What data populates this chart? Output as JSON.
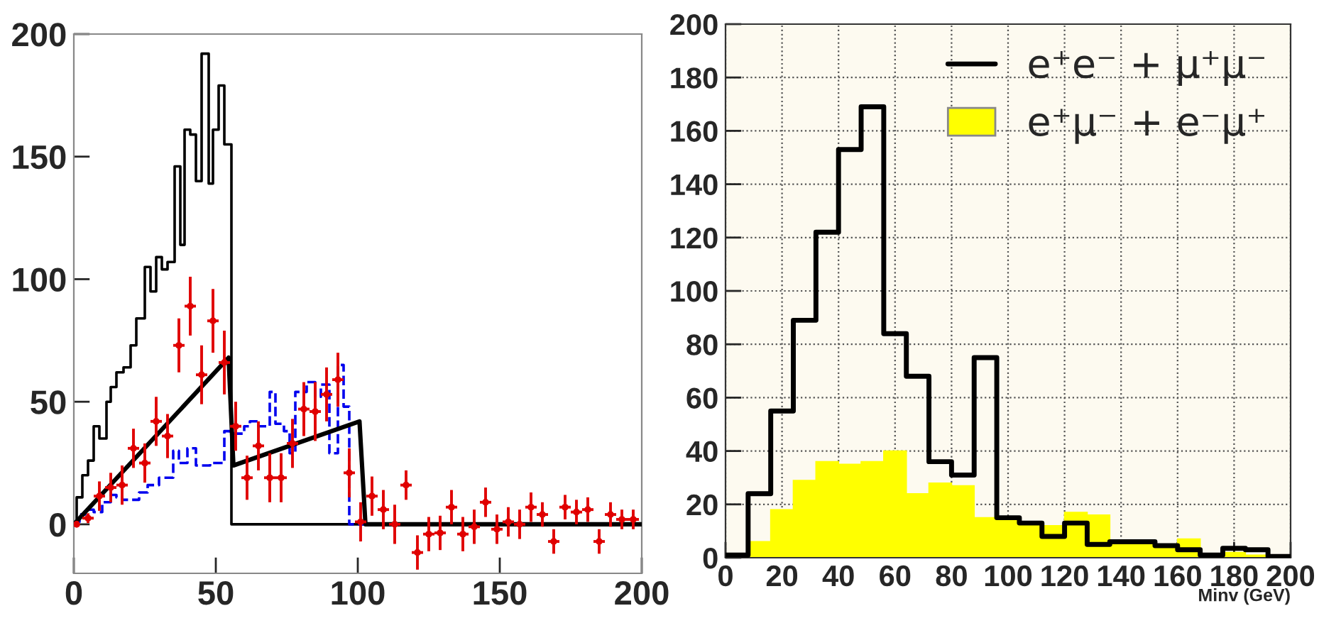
{
  "chart_data": [
    {
      "type": "step",
      "xlim": [
        0,
        200
      ],
      "ylim": [
        -20,
        200
      ],
      "xticks": [
        0,
        50,
        100,
        150,
        200
      ],
      "yticks": [
        0,
        50,
        100,
        150,
        200
      ],
      "grid": false,
      "legend": false,
      "series": [
        {
          "color": "#000000",
          "line_style": "solid",
          "x": [
            0,
            1,
            3,
            5,
            7,
            9,
            11.5,
            13,
            15,
            17.5,
            20,
            22,
            25,
            27,
            29,
            31,
            33,
            35.5,
            37.5,
            39,
            41,
            43,
            45,
            47.5,
            49,
            51,
            53,
            55.5,
            200
          ],
          "values": [
            0,
            11,
            20,
            26,
            40,
            35,
            50,
            56,
            62,
            64,
            73,
            84,
            105,
            95,
            109,
            104,
            107,
            146,
            114,
            161,
            159,
            140,
            192,
            139,
            161,
            179,
            155,
            0,
            0
          ]
        },
        {
          "color": "#0000ee",
          "line_style": "dashed",
          "x": [
            0,
            2,
            4,
            7,
            10,
            13,
            15,
            17,
            20,
            23,
            26,
            30,
            35,
            37,
            40,
            43,
            48,
            53,
            55,
            57,
            60,
            62,
            65,
            69,
            71,
            74,
            76,
            78,
            82,
            85,
            87,
            90,
            93,
            95,
            97,
            200
          ],
          "values": [
            1,
            4,
            6,
            5,
            9,
            12,
            11,
            10,
            10,
            13,
            16,
            19,
            30,
            25,
            31,
            24,
            25,
            38,
            37,
            37,
            40,
            42,
            40,
            54,
            41,
            38,
            29,
            54,
            58,
            52,
            57,
            29,
            65,
            48,
            0,
            0
          ]
        },
        {
          "type": "scatter",
          "color": "#e00000",
          "x": [
            1,
            5,
            9,
            13,
            17,
            21,
            25,
            29,
            33,
            37,
            41,
            45,
            49,
            53,
            57,
            61,
            65,
            69,
            73,
            77,
            81,
            85,
            89,
            93,
            97,
            101,
            105,
            109,
            113,
            117,
            121,
            125,
            129,
            133,
            137,
            141,
            145,
            149,
            153,
            157,
            161,
            165,
            169,
            173,
            177,
            181,
            185,
            189,
            193,
            197
          ],
          "values": [
            0,
            2.5,
            11.5,
            15,
            16,
            31,
            25,
            42,
            36,
            73,
            89,
            61,
            83,
            66,
            40,
            19,
            32,
            19,
            19,
            33,
            47,
            46,
            53,
            59,
            21,
            1,
            11.5,
            6,
            0,
            16,
            -11.5,
            -4,
            -3.5,
            7,
            -4,
            -1,
            9,
            -2,
            1,
            0,
            7,
            4,
            -7,
            7,
            5,
            6,
            -7,
            4,
            2,
            2
          ],
          "errors": [
            1,
            2,
            6,
            6,
            8,
            8,
            8,
            10,
            9,
            11,
            12,
            12,
            13,
            13,
            10,
            9,
            10,
            10,
            10,
            10,
            11,
            12,
            11,
            11,
            10,
            8,
            8,
            8,
            8,
            6,
            7,
            7,
            7,
            7,
            7,
            7,
            6,
            6,
            6,
            6,
            6,
            5,
            5,
            5,
            5,
            5,
            5,
            5,
            4,
            4
          ],
          "xerrors": [
            null,
            2,
            2,
            2,
            2,
            2,
            2,
            2,
            2,
            2,
            2,
            2,
            2,
            2,
            2,
            2,
            2,
            2,
            2,
            2,
            2,
            2,
            2,
            2,
            2,
            2,
            2,
            2,
            2,
            2,
            2,
            2,
            2,
            2,
            2,
            2,
            2,
            2,
            2,
            2,
            2,
            2,
            2,
            2,
            2,
            2,
            2,
            2,
            2,
            2
          ]
        },
        {
          "type": "line",
          "color": "#000000",
          "line_style": "solid",
          "x": [
            0,
            54.5,
            56.2,
            100.6,
            102.7,
            200
          ],
          "values": [
            0,
            68,
            24,
            42,
            0,
            0
          ]
        }
      ]
    },
    {
      "type": "histogram",
      "xlim": [
        0,
        200
      ],
      "ylim": [
        0,
        200
      ],
      "xticks": [
        0,
        20,
        40,
        60,
        80,
        100,
        120,
        140,
        160,
        180,
        200
      ],
      "yticks": [
        0,
        20,
        40,
        60,
        80,
        100,
        120,
        140,
        160,
        180,
        200
      ],
      "grid": true,
      "legend": "top right",
      "xlabel": "Minv (GeV)",
      "bins": [
        0,
        8,
        16,
        24,
        32,
        40,
        48,
        56,
        64,
        72,
        80,
        88,
        96,
        104,
        112,
        120,
        128,
        136,
        144,
        152,
        160,
        168,
        176,
        184,
        192,
        200
      ],
      "series": [
        {
          "name": "e⁺μ⁻ + e⁻μ⁺",
          "color": "#ffff00",
          "values": [
            0,
            6,
            18,
            29,
            36,
            35,
            36,
            40,
            24,
            28,
            27,
            15,
            14,
            13,
            12,
            17,
            16,
            5,
            5,
            5,
            7,
            null,
            2,
            1,
            0
          ]
        },
        {
          "type": "step",
          "name": "e⁺e⁻ + μ⁺μ⁻",
          "color": "#000000",
          "x": [
            0,
            8,
            16,
            24,
            32,
            40,
            48,
            56,
            64,
            72,
            80,
            88,
            96,
            104,
            112,
            120,
            128,
            136,
            144,
            152,
            160,
            168,
            176,
            184,
            192,
            200
          ],
          "values": [
            1,
            24,
            55,
            89,
            122,
            153,
            169,
            84,
            68,
            36,
            31,
            75,
            15,
            13,
            8,
            13,
            5,
            6,
            6,
            4.5,
            3,
            1,
            3.5,
            3,
            0.5,
            0.5
          ]
        }
      ]
    }
  ]
}
